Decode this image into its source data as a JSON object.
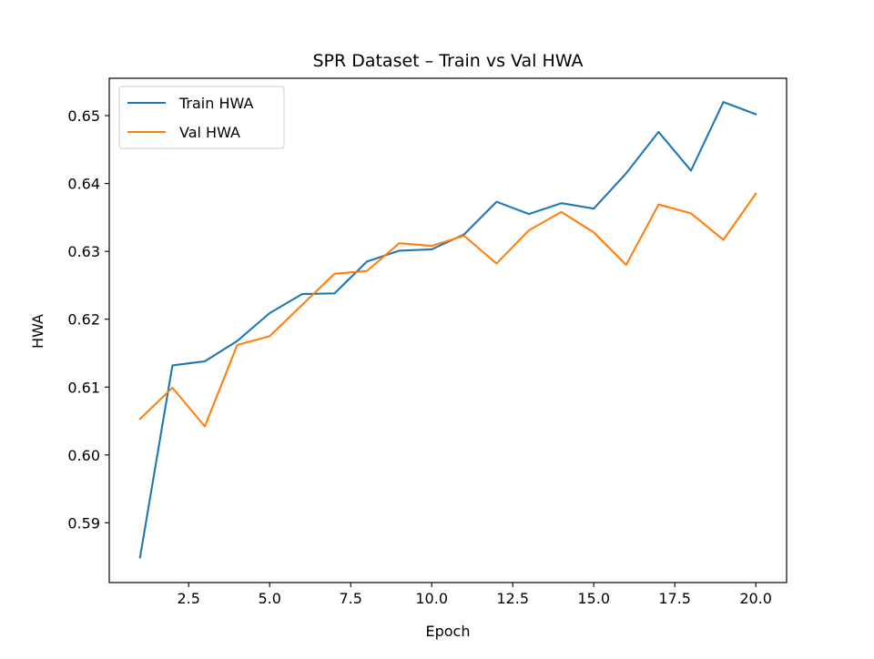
{
  "chart_data": {
    "type": "line",
    "title": "SPR Dataset – Train vs Val HWA",
    "xlabel": "Epoch",
    "ylabel": "HWA",
    "xlim": [
      0.05,
      20.95
    ],
    "ylim": [
      0.5812,
      0.6555
    ],
    "x_ticks": [
      2.5,
      5.0,
      7.5,
      10.0,
      12.5,
      15.0,
      17.5,
      20.0
    ],
    "x_tick_labels": [
      "2.5",
      "5.0",
      "7.5",
      "10.0",
      "12.5",
      "15.0",
      "17.5",
      "20.0"
    ],
    "y_ticks": [
      0.59,
      0.6,
      0.61,
      0.62,
      0.63,
      0.64,
      0.65
    ],
    "y_tick_labels": [
      "0.59",
      "0.60",
      "0.61",
      "0.62",
      "0.63",
      "0.64",
      "0.65"
    ],
    "grid": false,
    "legend_position": "top-left",
    "x": [
      1,
      2,
      3,
      4,
      5,
      6,
      7,
      8,
      9,
      10,
      11,
      12,
      13,
      14,
      15,
      16,
      17,
      18,
      19,
      20
    ],
    "series": [
      {
        "name": "Train HWA",
        "color": "#1f77b4",
        "values": [
          0.5849,
          0.6132,
          0.6138,
          0.6168,
          0.6209,
          0.6237,
          0.6238,
          0.6285,
          0.6301,
          0.6303,
          0.6325,
          0.6373,
          0.6355,
          0.6371,
          0.6363,
          0.6415,
          0.6476,
          0.6419,
          0.652,
          0.6502
        ]
      },
      {
        "name": "Val HWA",
        "color": "#ff7f0e",
        "values": [
          0.6053,
          0.6099,
          0.6042,
          0.6162,
          0.6175,
          0.6221,
          0.6267,
          0.6271,
          0.6312,
          0.6308,
          0.6323,
          0.6282,
          0.6331,
          0.6358,
          0.6328,
          0.628,
          0.6369,
          0.6356,
          0.6317,
          0.6385
        ]
      }
    ]
  }
}
